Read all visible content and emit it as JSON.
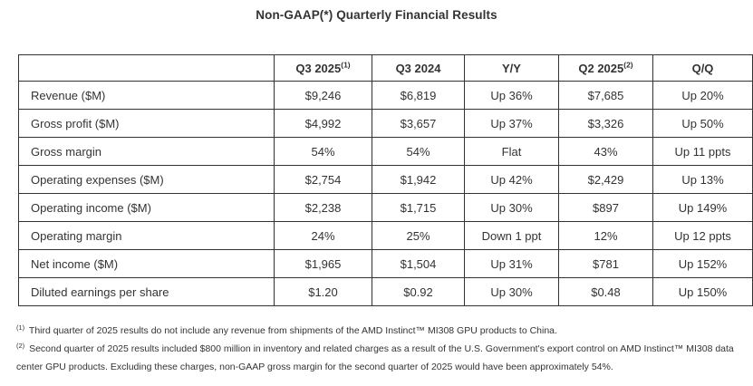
{
  "page": {
    "title": "Non-GAAP(*) Quarterly Financial Results"
  },
  "table": {
    "headers": [
      {
        "label": "",
        "sup": ""
      },
      {
        "label": "Q3 2025",
        "sup": "(1)"
      },
      {
        "label": "Q3 2024",
        "sup": ""
      },
      {
        "label": "Y/Y",
        "sup": ""
      },
      {
        "label": "Q2 2025",
        "sup": "(2)"
      },
      {
        "label": "Q/Q",
        "sup": ""
      }
    ],
    "rows": [
      {
        "label": "Revenue ($M)",
        "values": [
          "$9,246",
          "$6,819",
          "Up 36%",
          "$7,685",
          "Up 20%"
        ]
      },
      {
        "label": "Gross profit ($M)",
        "values": [
          "$4,992",
          "$3,657",
          "Up 37%",
          "$3,326",
          "Up 50%"
        ]
      },
      {
        "label": "Gross margin",
        "values": [
          "54%",
          "54%",
          "Flat",
          "43%",
          "Up 11 ppts"
        ]
      },
      {
        "label": "Operating expenses ($M)",
        "values": [
          "$2,754",
          "$1,942",
          "Up 42%",
          "$2,429",
          "Up 13%"
        ]
      },
      {
        "label": "Operating income ($M)",
        "values": [
          "$2,238",
          "$1,715",
          "Up 30%",
          "$897",
          "Up 149%"
        ]
      },
      {
        "label": "Operating margin",
        "values": [
          "24%",
          "25%",
          "Down 1 ppt",
          "12%",
          "Up 12 ppts"
        ]
      },
      {
        "label": "Net income ($M)",
        "values": [
          "$1,965",
          "$1,504",
          "Up 31%",
          "$781",
          "Up 152%"
        ]
      },
      {
        "label": "Diluted earnings per share",
        "values": [
          "$1.20",
          "$0.92",
          "Up 30%",
          "$0.48",
          "Up 150%"
        ]
      }
    ]
  },
  "footnotes": [
    {
      "marker": "(1)",
      "text": "Third quarter of 2025 results do not include any revenue from shipments of the AMD Instinct™ MI308 GPU products to China."
    },
    {
      "marker": "(2)",
      "text": "Second quarter of 2025 results included $800 million in inventory and related charges as a result of the U.S. Government's export control on AMD Instinct™ MI308 data center GPU products. Excluding these charges, non-GAAP gross margin for the second quarter of 2025 would have been approximately 54%."
    }
  ],
  "colors": {
    "text": "#333333",
    "border": "#333333",
    "background": "#ffffff"
  }
}
